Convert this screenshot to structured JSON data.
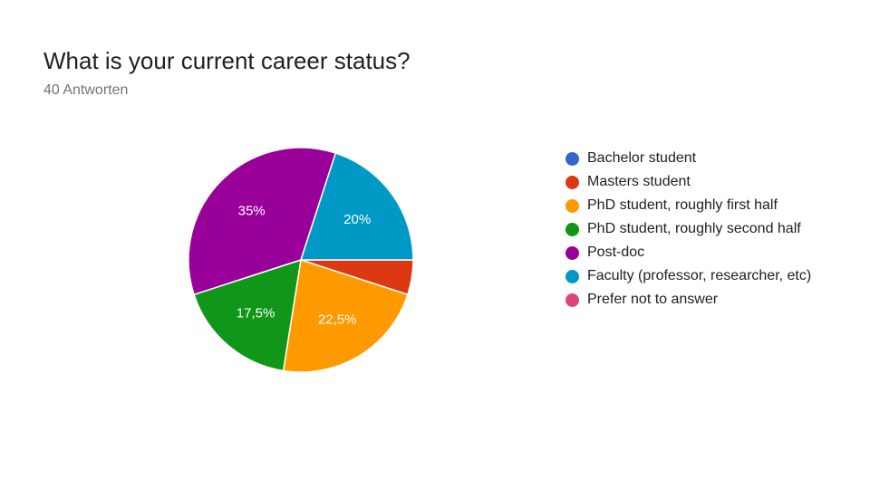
{
  "title": "What is your current career status?",
  "subtitle": "40 Antworten",
  "chart_data": {
    "type": "pie",
    "categories": [
      "Bachelor student",
      "Masters student",
      "PhD student, roughly first half",
      "PhD student, roughly second half",
      "Post-doc",
      "Faculty (professor, researcher, etc)",
      "Prefer not to answer"
    ],
    "values": [
      0,
      2,
      9,
      7,
      14,
      8,
      0
    ],
    "percent_labels": [
      "",
      "",
      "22,5%",
      "17,5%",
      "35%",
      "20%",
      ""
    ],
    "colors": [
      "#3366cc",
      "#dc3912",
      "#ff9900",
      "#109618",
      "#990099",
      "#0099c6",
      "#dd4477"
    ],
    "legend_position": "right"
  }
}
